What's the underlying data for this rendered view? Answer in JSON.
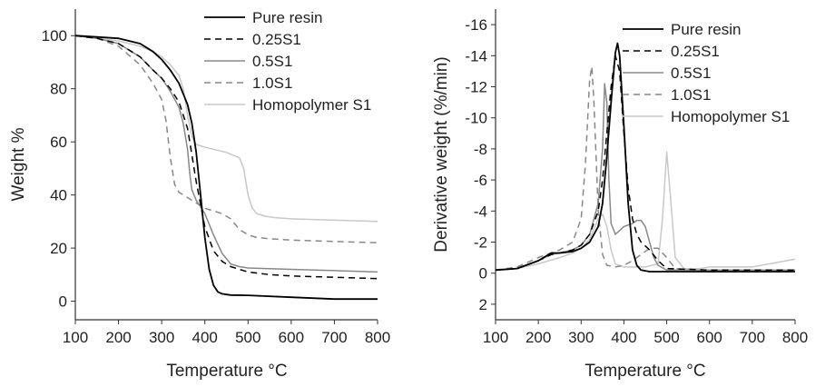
{
  "chart_data": [
    {
      "type": "line",
      "xlabel": "Temperature °C",
      "ylabel": "Weight %",
      "xlim": [
        100,
        800
      ],
      "ylim": [
        -7,
        110
      ],
      "y_reversed": false,
      "xticks": [
        100,
        200,
        300,
        400,
        500,
        600,
        700,
        800
      ],
      "yticks": [
        0,
        20,
        40,
        60,
        80,
        100
      ],
      "grid": false,
      "legend_position": "top-right",
      "series": [
        {
          "name": "Pure resin",
          "color": "#000000",
          "dash": "solid",
          "x": [
            100,
            150,
            200,
            250,
            280,
            300,
            320,
            340,
            360,
            370,
            380,
            390,
            400,
            410,
            420,
            430,
            440,
            450,
            460,
            500,
            600,
            700,
            800
          ],
          "y": [
            100,
            99.5,
            99,
            97,
            94,
            91,
            87,
            82,
            74,
            67,
            56,
            40,
            24,
            12,
            6,
            3.5,
            2.8,
            2.5,
            2.3,
            2.2,
            1.5,
            0.8,
            0.8
          ]
        },
        {
          "name": "0.25S1",
          "color": "#000000",
          "dash": "dashed",
          "x": [
            100,
            150,
            200,
            250,
            280,
            300,
            320,
            340,
            360,
            380,
            400,
            420,
            440,
            460,
            500,
            550,
            600,
            700,
            800
          ],
          "y": [
            100,
            99,
            97,
            92,
            87,
            84,
            80,
            75,
            65,
            45,
            28,
            19,
            15,
            13,
            11,
            10,
            9.5,
            9,
            8.5
          ]
        },
        {
          "name": "0.5S1",
          "color": "#888888",
          "dash": "solid",
          "x": [
            100,
            150,
            200,
            250,
            280,
            300,
            320,
            340,
            350,
            360,
            365,
            370,
            380,
            400,
            420,
            440,
            460,
            480,
            500,
            600,
            700,
            800
          ],
          "y": [
            100,
            99,
            97,
            92,
            87,
            84,
            79,
            73,
            67,
            57,
            48,
            42,
            38,
            33,
            25,
            18,
            14,
            13,
            12.5,
            12,
            11.5,
            11
          ]
        },
        {
          "name": "1.0S1",
          "color": "#888888",
          "dash": "dashed",
          "x": [
            100,
            150,
            200,
            250,
            280,
            300,
            310,
            320,
            330,
            340,
            360,
            380,
            400,
            420,
            440,
            460,
            480,
            500,
            520,
            550,
            600,
            700,
            800
          ],
          "y": [
            100,
            99,
            96,
            89,
            82,
            76,
            68,
            54,
            44,
            41,
            39,
            37,
            35,
            34,
            33,
            31,
            27,
            25,
            24,
            23.5,
            23,
            22.5,
            22
          ]
        },
        {
          "name": "Homopolymer S1",
          "color": "#c8c8c8",
          "dash": "solid",
          "x": [
            100,
            150,
            200,
            250,
            280,
            300,
            320,
            340,
            350,
            360,
            370,
            380,
            400,
            450,
            480,
            490,
            500,
            510,
            520,
            540,
            560,
            600,
            700,
            800
          ],
          "y": [
            100,
            99,
            98,
            96,
            94,
            92,
            89,
            85,
            80,
            70,
            62,
            59,
            58,
            56,
            54,
            50,
            40,
            35,
            33,
            32,
            31.5,
            31,
            30.5,
            30
          ]
        }
      ],
      "legend": [
        "Pure resin",
        "0.25S1",
        "0.5S1",
        "1.0S1",
        "Homopolymer S1"
      ]
    },
    {
      "type": "line",
      "xlabel": "Temperature °C",
      "ylabel": "Derivative weight (%/min)",
      "xlim": [
        100,
        800
      ],
      "ylim": [
        -17,
        3
      ],
      "y_reversed": true,
      "xticks": [
        100,
        200,
        300,
        400,
        500,
        600,
        700,
        800
      ],
      "yticks": [
        -16,
        -14,
        -12,
        -10,
        -8,
        -6,
        -4,
        -2,
        0,
        2
      ],
      "grid": false,
      "legend_position": "top-right",
      "series": [
        {
          "name": "Pure resin",
          "color": "#000000",
          "dash": "solid",
          "x": [
            100,
            150,
            200,
            230,
            250,
            280,
            300,
            320,
            340,
            350,
            360,
            370,
            380,
            385,
            390,
            400,
            410,
            420,
            430,
            440,
            460,
            500,
            600,
            700,
            800
          ],
          "y": [
            -0.2,
            -0.3,
            -0.8,
            -1.3,
            -1.3,
            -1.4,
            -1.6,
            -2.0,
            -3.0,
            -4.5,
            -7.5,
            -11.0,
            -14.2,
            -14.8,
            -14.0,
            -9.5,
            -4.5,
            -1.5,
            -0.5,
            -0.2,
            -0.1,
            -0.1,
            -0.1,
            -0.1,
            -0.1
          ]
        },
        {
          "name": "0.25S1",
          "color": "#000000",
          "dash": "dashed",
          "x": [
            100,
            150,
            200,
            230,
            250,
            280,
            300,
            320,
            340,
            350,
            360,
            370,
            380,
            390,
            400,
            410,
            420,
            430,
            440,
            460,
            480,
            500,
            600,
            700,
            800
          ],
          "y": [
            -0.2,
            -0.3,
            -0.8,
            -1.2,
            -1.3,
            -1.5,
            -1.8,
            -2.5,
            -4.0,
            -6.0,
            -9.0,
            -12.0,
            -14.0,
            -13.0,
            -9.0,
            -5.5,
            -3.5,
            -2.5,
            -2.0,
            -1.5,
            -0.8,
            -0.3,
            -0.2,
            -0.2,
            -0.2
          ]
        },
        {
          "name": "0.5S1",
          "color": "#888888",
          "dash": "solid",
          "x": [
            100,
            150,
            200,
            230,
            250,
            280,
            300,
            320,
            340,
            350,
            355,
            360,
            365,
            370,
            380,
            400,
            420,
            430,
            440,
            450,
            460,
            470,
            480,
            500,
            600,
            700,
            800
          ],
          "y": [
            -0.2,
            -0.3,
            -0.8,
            -1.2,
            -1.3,
            -1.5,
            -1.8,
            -2.5,
            -4.5,
            -8.0,
            -12.2,
            -11.0,
            -6.0,
            -3.2,
            -2.5,
            -3.0,
            -3.2,
            -3.4,
            -3.4,
            -3.0,
            -2.0,
            -1.0,
            -0.5,
            -0.2,
            -0.2,
            -0.2,
            -0.2
          ]
        },
        {
          "name": "1.0S1",
          "color": "#888888",
          "dash": "dashed",
          "x": [
            100,
            150,
            200,
            250,
            280,
            300,
            310,
            320,
            325,
            330,
            340,
            350,
            360,
            380,
            400,
            420,
            440,
            460,
            480,
            500,
            520,
            600,
            700,
            800
          ],
          "y": [
            -0.2,
            -0.4,
            -1.0,
            -1.5,
            -2.0,
            -3.5,
            -7.0,
            -12.5,
            -13.3,
            -11.0,
            -4.0,
            -1.2,
            -0.5,
            -0.4,
            -0.5,
            -0.8,
            -1.2,
            -1.6,
            -1.6,
            -1.0,
            -0.3,
            -0.1,
            -0.1,
            -0.1
          ]
        },
        {
          "name": "Homopolymer S1",
          "color": "#c8c8c8",
          "dash": "solid",
          "x": [
            100,
            150,
            200,
            250,
            280,
            300,
            320,
            340,
            350,
            360,
            370,
            380,
            400,
            450,
            480,
            490,
            500,
            510,
            520,
            540,
            580,
            600,
            700,
            800
          ],
          "y": [
            -0.2,
            -0.3,
            -0.6,
            -1.0,
            -1.3,
            -1.6,
            -2.2,
            -3.5,
            -3.8,
            -3.0,
            -1.5,
            -0.6,
            -0.4,
            -0.4,
            -0.6,
            -3.5,
            -7.8,
            -4.5,
            -1.0,
            -0.3,
            -0.3,
            -0.4,
            -0.4,
            -0.9
          ]
        }
      ],
      "legend": [
        "Pure resin",
        "0.25S1",
        "0.5S1",
        "1.0S1",
        "Homopolymer S1"
      ]
    }
  ]
}
